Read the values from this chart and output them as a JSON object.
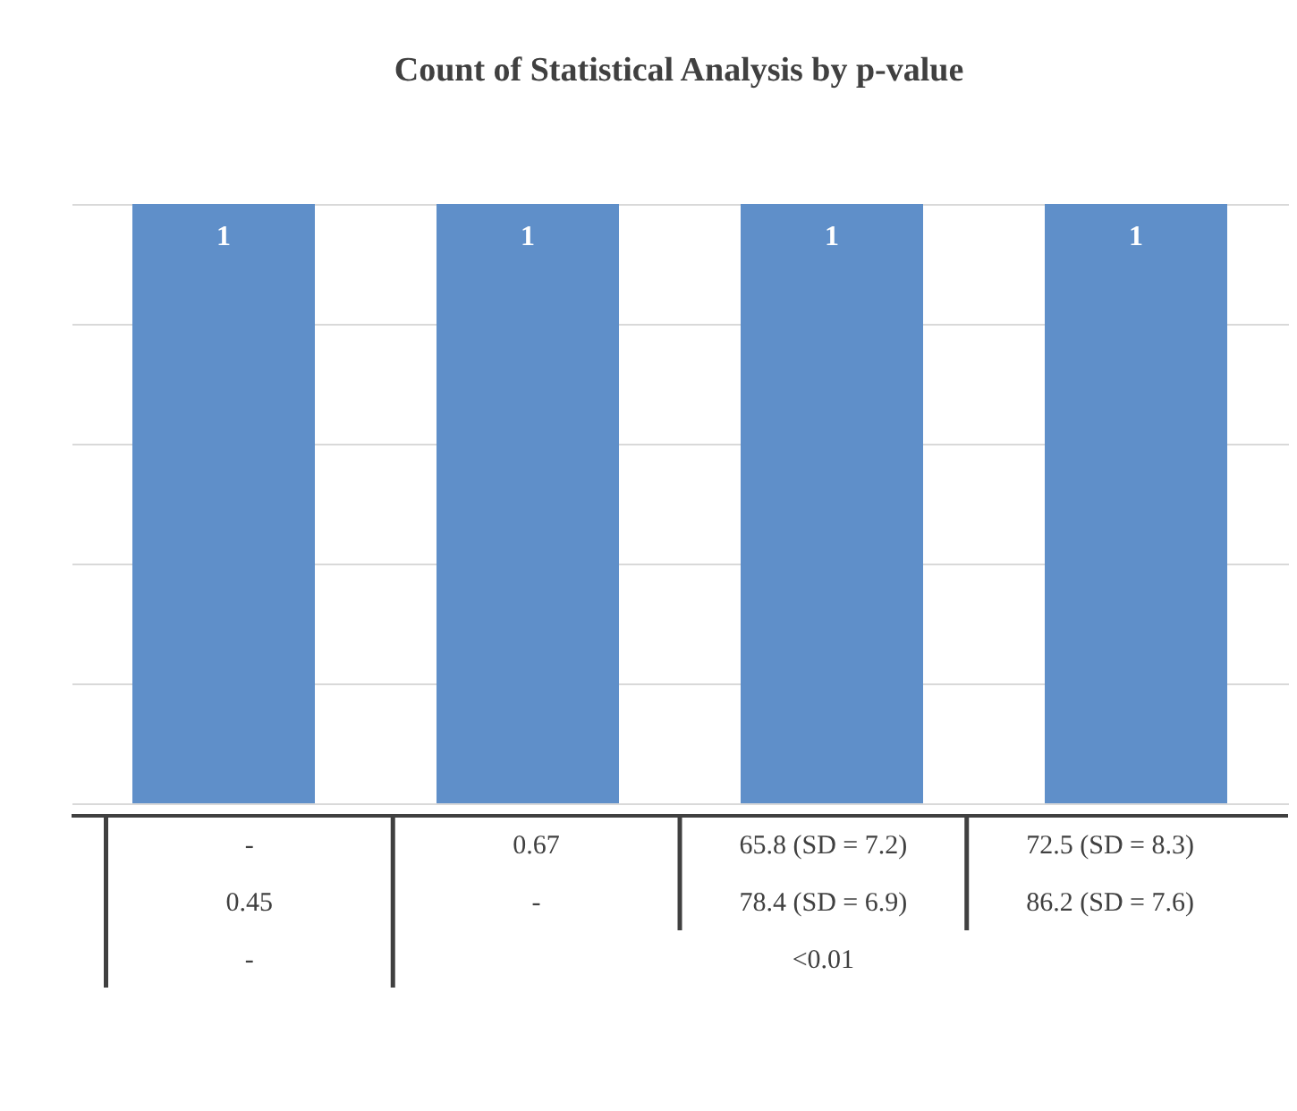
{
  "chart_data": {
    "type": "bar",
    "title": "Count of Statistical Analysis by p-value",
    "categories": [
      "-",
      "0.67",
      "65.8 (SD = 7.2)",
      "72.5 (SD = 8.3)"
    ],
    "values": [
      1,
      1,
      1,
      1
    ],
    "color": "#5f8fc9",
    "data_labels": true,
    "grid": "y",
    "ylim": [
      0,
      1
    ],
    "yticks": [
      {
        "value": 0,
        "label": null
      },
      {
        "value": 0.2,
        "label": null
      },
      {
        "value": 0.4,
        "label": null
      },
      {
        "value": 0.6,
        "label": null
      },
      {
        "value": 0.8,
        "label": null
      },
      {
        "value": 1,
        "label": null
      }
    ],
    "annotations": [
      "0.45",
      "-",
      "78.4 (SD = 6.9)",
      "86.2 (SD = 7.6)",
      "-",
      "<0.01"
    ]
  }
}
